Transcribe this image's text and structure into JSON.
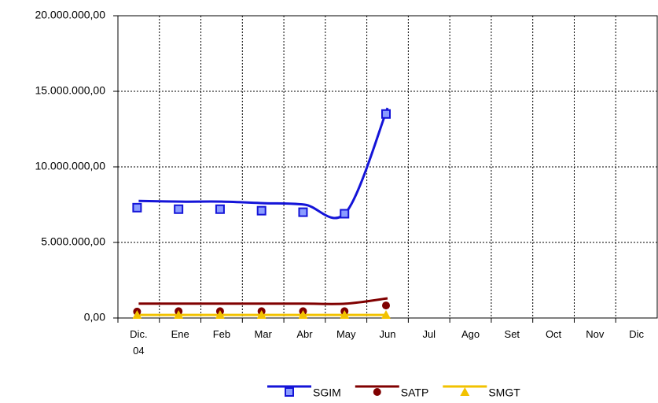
{
  "chart_data": {
    "type": "line",
    "categories": [
      "Dic.\n04",
      "Ene",
      "Feb",
      "Mar",
      "Abr",
      "May",
      "Jun",
      "Jul",
      "Ago",
      "Set",
      "Oct",
      "Nov",
      "Dic"
    ],
    "series": [
      {
        "name": "SGIM",
        "color": "#1414d8",
        "marker": "square",
        "values": [
          7300000,
          7200000,
          7200000,
          7100000,
          7000000,
          6900000,
          13500000,
          null,
          null,
          null,
          null,
          null,
          null
        ],
        "line_values": [
          7750000,
          7700000,
          7700000,
          7600000,
          7500000,
          7000000,
          13900000,
          null,
          null,
          null,
          null,
          null,
          null
        ]
      },
      {
        "name": "SATP",
        "color": "#800000",
        "marker": "circle",
        "values": [
          420000,
          450000,
          450000,
          450000,
          450000,
          450000,
          830000,
          null,
          null,
          null,
          null,
          null,
          null
        ],
        "line_values": [
          950000,
          950000,
          950000,
          950000,
          950000,
          950000,
          1300000,
          null,
          null,
          null,
          null,
          null,
          null
        ]
      },
      {
        "name": "SMGT",
        "color": "#f2c200",
        "marker": "triangle",
        "values": [
          210000,
          210000,
          210000,
          210000,
          210000,
          210000,
          210000,
          null,
          null,
          null,
          null,
          null,
          null
        ],
        "line_values": [
          200000,
          200000,
          200000,
          200000,
          200000,
          200000,
          200000,
          null,
          null,
          null,
          null,
          null,
          null
        ]
      }
    ],
    "ylim": [
      0,
      20000000
    ],
    "yticks": [
      {
        "value": 0,
        "label": "0,00"
      },
      {
        "value": 5000000,
        "label": "5.000.000,00"
      },
      {
        "value": 10000000,
        "label": "10.000.000,00"
      },
      {
        "value": 15000000,
        "label": "15.000.000,00"
      },
      {
        "value": 20000000,
        "label": "20.000.000,00"
      }
    ],
    "grid": true,
    "legend": "bottom"
  }
}
